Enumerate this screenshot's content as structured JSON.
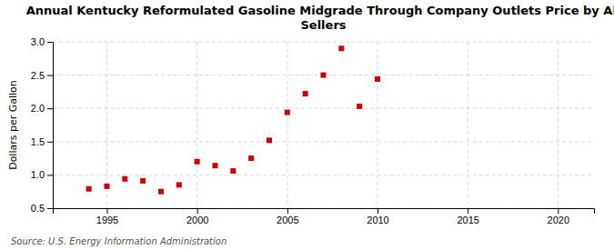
{
  "chart_data": {
    "type": "scatter",
    "title": "Annual Kentucky Reformulated Gasoline Midgrade Through Company Outlets Price by All\nSellers",
    "ylabel": "Dollars per Gallon",
    "source": "Source: U.S. Energy Information Administration",
    "x": [
      1994,
      1995,
      1996,
      1997,
      1998,
      1999,
      2000,
      2001,
      2002,
      2003,
      2004,
      2005,
      2006,
      2007,
      2008,
      2009,
      2010
    ],
    "values": [
      0.79,
      0.83,
      0.94,
      0.91,
      0.75,
      0.85,
      1.2,
      1.14,
      1.06,
      1.25,
      1.52,
      1.94,
      2.22,
      2.5,
      2.9,
      2.03,
      2.44
    ],
    "color": "#cc0000",
    "marker": "square",
    "xlim": [
      1992,
      2022
    ],
    "ylim": [
      0.5,
      3.0
    ],
    "xticks": [
      1995,
      2000,
      2005,
      2010,
      2015,
      2020
    ],
    "yticks": [
      0.5,
      {
        "value": 1.0,
        "label": "1.0"
      },
      1.5,
      {
        "value": 2.0,
        "label": "2.0"
      },
      2.5,
      {
        "value": 3.0,
        "label": "3.0"
      }
    ],
    "grid": true
  }
}
